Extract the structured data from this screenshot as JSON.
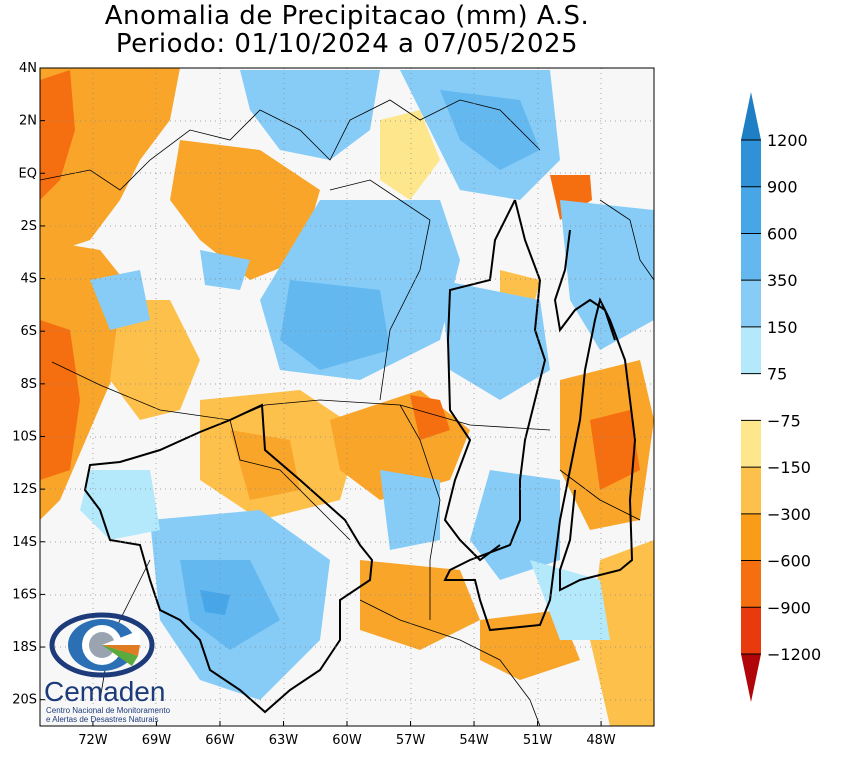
{
  "title": {
    "line1": "Anomalia de Precipitacao (mm) A.S.",
    "line2": "Periodo: 01/10/2024 a 07/05/2025"
  },
  "axes": {
    "lat_labels": [
      "4N",
      "2N",
      "EQ",
      "2S",
      "4S",
      "6S",
      "8S",
      "10S",
      "12S",
      "14S",
      "16S",
      "18S",
      "20S"
    ],
    "lat_values": [
      4,
      2,
      0,
      -2,
      -4,
      -6,
      -8,
      -10,
      -12,
      -14,
      -16,
      -18,
      -20
    ],
    "lon_labels": [
      "72W",
      "69W",
      "66W",
      "63W",
      "60W",
      "57W",
      "54W",
      "51W",
      "48W"
    ],
    "lon_values": [
      -72,
      -69,
      -66,
      -63,
      -60,
      -57,
      -54,
      -51,
      -48
    ],
    "lon_range": [
      -74.5,
      -45.5
    ],
    "lat_range": [
      -21,
      4
    ]
  },
  "colorbar": {
    "labels": [
      "1200",
      "900",
      "600",
      "350",
      "150",
      "75",
      "−75",
      "−150",
      "−300",
      "−600",
      "−900",
      "−1200"
    ],
    "colors": [
      "#1f7fc4",
      "#2f92d8",
      "#47a6e8",
      "#63b8f0",
      "#86ccf7",
      "#b4e8fb",
      "#ffffff",
      "#fde68b",
      "#fdc04a",
      "#f99d18",
      "#f56f10",
      "#e83a0c",
      "#b0060a"
    ]
  },
  "logo": {
    "name": "Cemaden",
    "subtitle_line1": "Centro Nacional de Monitoramento",
    "subtitle_line2": "e Alertas de Desastres Naturais"
  },
  "colors": {
    "positive_main": "#5fb4ee",
    "negative_main": "#f9a52a",
    "strong_negative": "#f56f10",
    "frame": "#000000"
  }
}
